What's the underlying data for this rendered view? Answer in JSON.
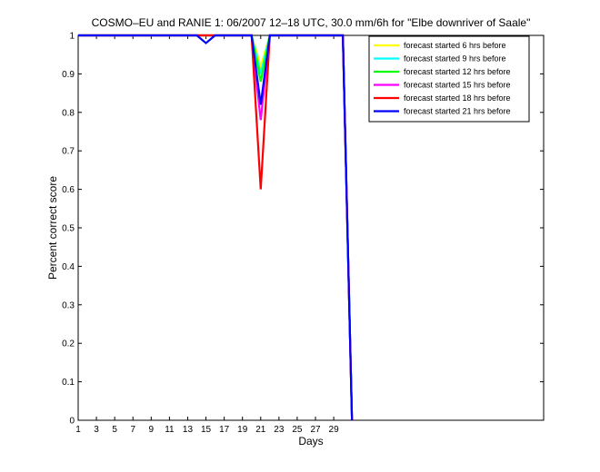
{
  "chart_data": {
    "type": "line",
    "title": "COSMO–EU and RANIE 1: 06/2007 12–18 UTC, 30.0 mm/6h for \"Elbe downriver of Saale\"",
    "xlabel": "Days",
    "ylabel": "Percent correct score",
    "xlim": [
      1,
      52
    ],
    "ylim": [
      0,
      1
    ],
    "xticks": [
      1,
      3,
      5,
      7,
      9,
      11,
      13,
      15,
      17,
      19,
      21,
      23,
      25,
      27,
      29
    ],
    "yticks": [
      0,
      0.1,
      0.2,
      0.3,
      0.4,
      0.5,
      0.6,
      0.7,
      0.8,
      0.9,
      1
    ],
    "xtick_labels": [
      "1",
      "3",
      "5",
      "7",
      "9",
      "11",
      "13",
      "15",
      "17",
      "19",
      "21",
      "23",
      "25",
      "27",
      "29"
    ],
    "ytick_labels": [
      "0",
      "0.1",
      "0.2",
      "0.3",
      "0.4",
      "0.5",
      "0.6",
      "0.7",
      "0.8",
      "0.9",
      "1"
    ],
    "grid": false,
    "legend_position": "top-right",
    "series": [
      {
        "name": "forecast started 6 hrs before",
        "color": "#ffff00",
        "x": [
          1,
          14,
          15,
          16,
          20,
          21,
          22,
          30,
          31
        ],
        "y": [
          1,
          1,
          1,
          1,
          1,
          0.92,
          1,
          1,
          0
        ]
      },
      {
        "name": "forecast started 9 hrs before",
        "color": "#00ffff",
        "x": [
          1,
          14,
          15,
          16,
          20,
          21,
          22,
          30,
          31
        ],
        "y": [
          1,
          1,
          1,
          1,
          1,
          0.9,
          1,
          1,
          0
        ]
      },
      {
        "name": "forecast started 12 hrs before",
        "color": "#00ff00",
        "x": [
          1,
          14,
          15,
          16,
          20,
          21,
          22,
          30,
          31
        ],
        "y": [
          1,
          1,
          1,
          1,
          1,
          0.88,
          1,
          1,
          0
        ]
      },
      {
        "name": "forecast started 15 hrs before",
        "color": "#ff00ff",
        "x": [
          1,
          14,
          15,
          16,
          20,
          21,
          22,
          30,
          31
        ],
        "y": [
          1,
          1,
          1,
          1,
          1,
          0.78,
          1,
          1,
          0
        ]
      },
      {
        "name": "forecast started 18 hrs before",
        "color": "#ff0000",
        "x": [
          1,
          14,
          15,
          16,
          20,
          21,
          22,
          30,
          31
        ],
        "y": [
          1,
          1,
          1,
          1,
          1,
          0.6,
          1,
          1,
          0
        ]
      },
      {
        "name": "forecast started 21 hrs before",
        "color": "#0000ff",
        "x": [
          1,
          14,
          15,
          16,
          20,
          21,
          22,
          30,
          31
        ],
        "y": [
          1,
          1,
          0.98,
          1,
          1,
          0.82,
          1,
          1,
          0
        ]
      }
    ]
  }
}
